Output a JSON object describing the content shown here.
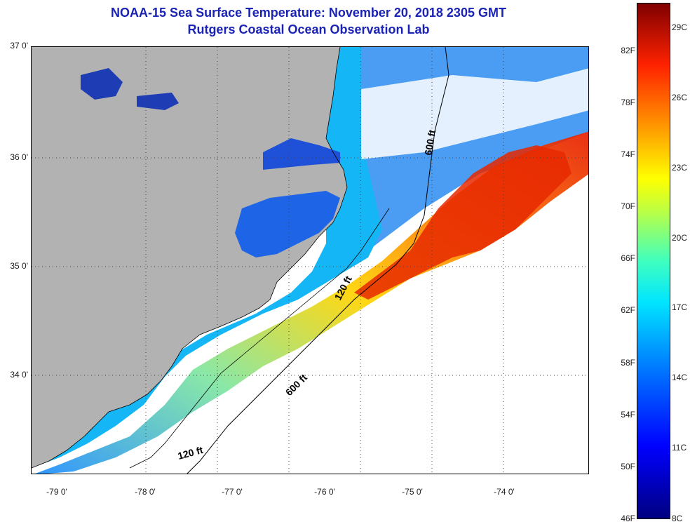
{
  "header": {
    "title": "NOAA-15 Sea Surface Temperature:  November 20, 2018 2305 GMT",
    "subtitle": "Rutgers Coastal Ocean Observation Lab"
  },
  "map": {
    "lat_labels": [
      "37 0'",
      "36 0'",
      "35 0'",
      "34 0'"
    ],
    "lon_labels": [
      "-79 0'",
      "-78 0'",
      "-77 0'",
      "-76 0'",
      "-75 0'",
      "-74 0'"
    ],
    "contours": [
      "600 ft",
      "120 ft",
      "600 ft",
      "120 ft"
    ],
    "colors": {
      "land": "#b2b2b2",
      "cloud": "#ffffff",
      "water_cold": "#1e6ee6",
      "water_cool": "#00bfff",
      "water_mid": "#9fe870",
      "water_warm": "#ff8c00",
      "water_hot": "#e61e00"
    }
  },
  "colorbar": {
    "fahrenheit": [
      "82F",
      "78F",
      "74F",
      "70F",
      "66F",
      "62F",
      "58F",
      "54F",
      "50F",
      "46F"
    ],
    "celsius": [
      "29C",
      "26C",
      "23C",
      "20C",
      "17C",
      "14C",
      "11C",
      "8C"
    ]
  }
}
